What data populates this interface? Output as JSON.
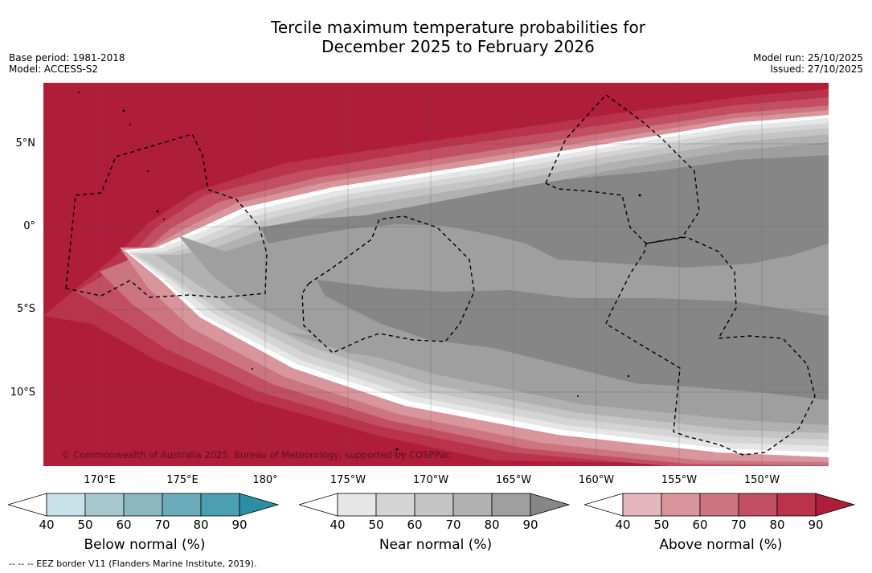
{
  "title_line1": "Tercile maximum temperature probabilities for",
  "title_line2": "December 2025 to February 2026",
  "meta": {
    "base_period": "Base period: 1981-2018",
    "model": "Model: ACCESS-S2",
    "model_run": "Model run: 25/10/2025",
    "issued": "Issued: 27/10/2025"
  },
  "map": {
    "copyright": "© Commonwealth of Australia 2025, Bureau of Meteorology, supported by COSPPac",
    "lat_labels": [
      "5°N",
      "0°",
      "5°S",
      "10°S"
    ],
    "lon_labels": [
      "170°E",
      "175°E",
      "180°",
      "175°W",
      "170°W",
      "165°W",
      "160°W",
      "155°W",
      "150°W"
    ]
  },
  "colorbars": [
    {
      "label": "Below normal (%)",
      "ticks": [
        "40",
        "50",
        "60",
        "70",
        "80",
        "90"
      ],
      "colors": [
        "#c8e1e8",
        "#a8c8cf",
        "#8bb7c1",
        "#6cabb9",
        "#4a9fb0",
        "#2b8fa3"
      ]
    },
    {
      "label": "Near normal (%)",
      "ticks": [
        "40",
        "50",
        "60",
        "70",
        "80",
        "90"
      ],
      "colors": [
        "#e6e6e6",
        "#d4d4d4",
        "#c4c4c4",
        "#b1b1b1",
        "#9f9f9f",
        "#868686"
      ]
    },
    {
      "label": "Above normal (%)",
      "ticks": [
        "40",
        "50",
        "60",
        "70",
        "80",
        "90"
      ],
      "colors": [
        "#e3b7bd",
        "#d8959c",
        "#cc7580",
        "#c24e61",
        "#b9334a",
        "#b01d39"
      ]
    }
  ],
  "footer": "-- -- -- EEZ border V11 (Flanders Marine Institute, 2019)."
}
